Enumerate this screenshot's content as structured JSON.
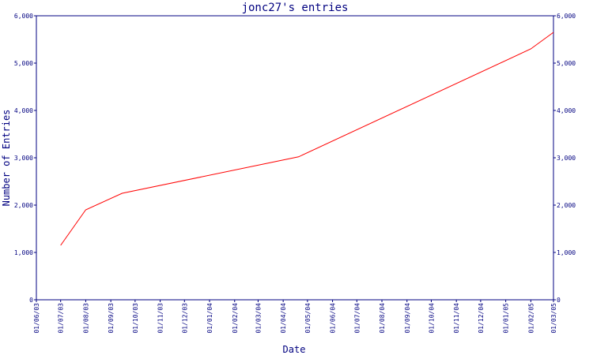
{
  "chart_data": {
    "type": "line",
    "title": "jonc27's entries",
    "xlabel": "Date",
    "ylabel": "Number of Entries",
    "x_ticks": [
      "01/06/03",
      "01/07/03",
      "01/08/03",
      "01/09/03",
      "01/10/03",
      "01/11/03",
      "01/12/03",
      "01/01/04",
      "01/02/04",
      "01/03/04",
      "01/04/04",
      "01/05/04",
      "01/06/04",
      "01/07/04",
      "01/08/04",
      "01/09/04",
      "01/10/04",
      "01/11/04",
      "01/12/04",
      "01/01/05",
      "01/02/05",
      "01/03/05"
    ],
    "y_ticks": [
      "0",
      "1,000",
      "2,000",
      "3,000",
      "4,000",
      "5,000",
      "6,000"
    ],
    "ylim": [
      0,
      6000
    ],
    "grid": false,
    "series": [
      {
        "color": "#ff0000",
        "x": [
          "2003-07-01",
          "2003-08-01",
          "2003-09-15",
          "2004-04-20",
          "2005-02-01",
          "2005-03-01"
        ],
        "y": [
          1150,
          1900,
          2250,
          3020,
          5300,
          5650
        ]
      }
    ]
  }
}
